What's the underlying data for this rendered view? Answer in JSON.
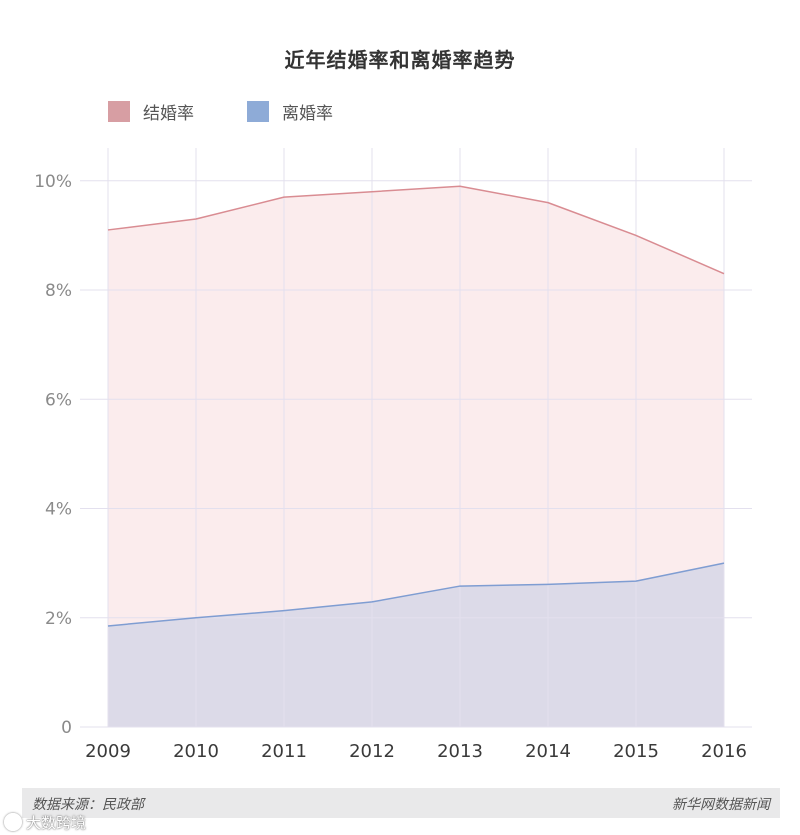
{
  "chart_data": {
    "type": "area",
    "title": "近年结婚率和离婚率趋势",
    "categories": [
      "2009",
      "2010",
      "2011",
      "2012",
      "2013",
      "2014",
      "2015",
      "2016"
    ],
    "series": [
      {
        "name": "结婚率",
        "values": [
          9.1,
          9.3,
          9.7,
          9.8,
          9.9,
          9.6,
          9.0,
          8.3
        ],
        "color": "#d98c92",
        "fill": "#fbeced",
        "swatch": "#d79ea3"
      },
      {
        "name": "离婚率",
        "values": [
          1.85,
          2.0,
          2.13,
          2.29,
          2.58,
          2.61,
          2.67,
          3.0
        ],
        "color": "#7f9dd2",
        "fill": "#dcdae8",
        "swatch": "#8eabd7"
      }
    ],
    "yticks": [
      {
        "value": 0,
        "label": "0"
      },
      {
        "value": 2,
        "label": "2%"
      },
      {
        "value": 4,
        "label": "4%"
      },
      {
        "value": 6,
        "label": "6%"
      },
      {
        "value": 8,
        "label": "8%"
      },
      {
        "value": 10,
        "label": "10%"
      }
    ],
    "ylim": [
      0,
      10.6
    ],
    "xlabel": "",
    "ylabel": "",
    "legend": "top-left",
    "grid": true,
    "grid_color": "#e3e0ee"
  },
  "footer": {
    "source": "数据来源：民政部",
    "credit": "新华网数据新闻"
  },
  "watermark": {
    "text": "大数跨境"
  }
}
